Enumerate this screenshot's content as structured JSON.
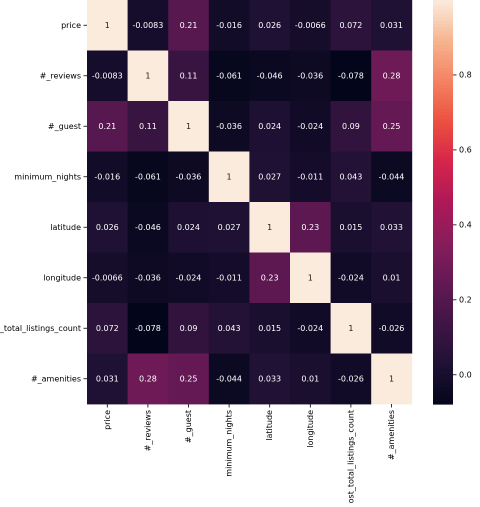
{
  "chart_data": {
    "type": "heatmap",
    "title": "",
    "row_labels": [
      "price",
      "#_reviews",
      "#_guest",
      "minimum_nights",
      "latitude",
      "longitude",
      "host_total_listings_count",
      "#_amenities"
    ],
    "col_labels": [
      "price",
      "#_reviews",
      "#_guest",
      "minimum_nights",
      "latitude",
      "longitude",
      "host_total_listings_count",
      "#_amenities"
    ],
    "values": [
      [
        1,
        -0.0083,
        0.21,
        -0.016,
        0.026,
        -0.0066,
        0.072,
        0.031
      ],
      [
        -0.0083,
        1,
        0.11,
        -0.061,
        -0.046,
        -0.036,
        -0.078,
        0.28
      ],
      [
        0.21,
        0.11,
        1,
        -0.036,
        0.024,
        -0.024,
        0.09,
        0.25
      ],
      [
        -0.016,
        -0.061,
        -0.036,
        1,
        0.027,
        -0.011,
        0.043,
        -0.044
      ],
      [
        0.026,
        -0.046,
        0.024,
        0.027,
        1,
        0.23,
        0.015,
        0.033
      ],
      [
        -0.0066,
        -0.036,
        -0.024,
        -0.011,
        0.23,
        1,
        -0.024,
        0.01
      ],
      [
        0.072,
        -0.078,
        0.09,
        0.043,
        0.015,
        -0.024,
        1,
        -0.026
      ],
      [
        0.031,
        0.28,
        0.25,
        -0.044,
        0.033,
        0.01,
        -0.026,
        1
      ]
    ],
    "annotations": [
      [
        "1",
        "-0.0083",
        "0.21",
        "-0.016",
        "0.026",
        "-0.0066",
        "0.072",
        "0.031"
      ],
      [
        "-0.0083",
        "1",
        "0.11",
        "-0.061",
        "-0.046",
        "-0.036",
        "-0.078",
        "0.28"
      ],
      [
        "0.21",
        "0.11",
        "1",
        "-0.036",
        "0.024",
        "-0.024",
        "0.09",
        "0.25"
      ],
      [
        "-0.016",
        "-0.061",
        "-0.036",
        "1",
        "0.027",
        "-0.011",
        "0.043",
        "-0.044"
      ],
      [
        "0.026",
        "-0.046",
        "0.024",
        "0.027",
        "1",
        "0.23",
        "0.015",
        "0.033"
      ],
      [
        "-0.0066",
        "-0.036",
        "-0.024",
        "-0.011",
        "0.23",
        "1",
        "-0.024",
        "0.01"
      ],
      [
        "0.072",
        "-0.078",
        "0.09",
        "0.043",
        "0.015",
        "-0.024",
        "1",
        "-0.026"
      ],
      [
        "0.031",
        "0.28",
        "0.25",
        "-0.044",
        "0.033",
        "0.01",
        "-0.026",
        "1"
      ]
    ],
    "colormap": "rocket",
    "colorbar": {
      "vmin": -0.078,
      "vmax": 1,
      "ticks": [
        0.0,
        0.2,
        0.4,
        0.6,
        0.8
      ],
      "tick_labels": [
        "0.0",
        "0.2",
        "0.4",
        "0.6",
        "0.8"
      ],
      "position": "right"
    },
    "colors": {
      "low": "#03051a",
      "high": "#faebdd",
      "text_on_dark": "#ffffff",
      "text_on_light": "#1a1a1a"
    }
  }
}
